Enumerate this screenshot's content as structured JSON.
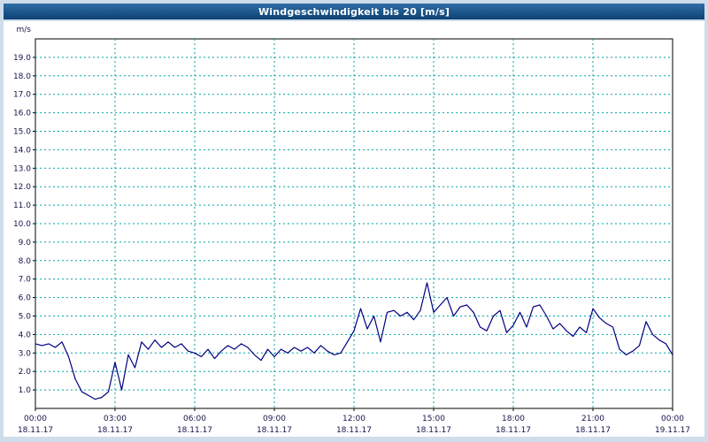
{
  "title": "Windgeschwindigkeit bis 20 [m/s]",
  "colors": {
    "background": "#cfdcea",
    "titlebar_top": "#2f6ea5",
    "titlebar_bottom": "#0d4173",
    "title_text": "#ffffff",
    "panel": "#ffffff",
    "plot_border": "#000000",
    "grid": "#00a3a3",
    "line": "#000080",
    "label": "#14144b"
  },
  "chart_data": {
    "type": "line",
    "title": "Windgeschwindigkeit bis 20 [m/s]",
    "xlabel": "",
    "ylabel": "m/s",
    "ylim": [
      0,
      20
    ],
    "xlim": [
      0,
      1440
    ],
    "grid": true,
    "legend": "none",
    "ytick_labels": [
      "1.0",
      "2.0",
      "3.0",
      "4.0",
      "5.0",
      "6.0",
      "7.0",
      "8.0",
      "9.0",
      "10.0",
      "11.0",
      "12.0",
      "13.0",
      "14.0",
      "15.0",
      "16.0",
      "17.0",
      "18.0",
      "19.0"
    ],
    "xtick_step_minutes": 180,
    "xticks": [
      {
        "time": "00:00",
        "date": "18.11.17"
      },
      {
        "time": "03:00",
        "date": "18.11.17"
      },
      {
        "time": "06:00",
        "date": "18.11.17"
      },
      {
        "time": "09:00",
        "date": "18.11.17"
      },
      {
        "time": "12:00",
        "date": "18.11.17"
      },
      {
        "time": "15:00",
        "date": "18.11.17"
      },
      {
        "time": "18:00",
        "date": "18.11.17"
      },
      {
        "time": "21:00",
        "date": "18.11.17"
      },
      {
        "time": "00:00",
        "date": "19.11.17"
      }
    ],
    "series": [
      {
        "name": "Windgeschwindigkeit [m/s]",
        "start_minute": 0,
        "interval_minutes": 15,
        "values": [
          3.5,
          3.4,
          3.5,
          3.3,
          3.6,
          2.8,
          1.6,
          0.9,
          0.7,
          0.5,
          0.6,
          0.9,
          2.5,
          1.0,
          2.9,
          2.2,
          3.6,
          3.2,
          3.7,
          3.3,
          3.6,
          3.3,
          3.5,
          3.1,
          3.0,
          2.8,
          3.2,
          2.7,
          3.1,
          3.4,
          3.2,
          3.5,
          3.3,
          2.9,
          2.6,
          3.2,
          2.8,
          3.2,
          3.0,
          3.3,
          3.1,
          3.3,
          3.0,
          3.4,
          3.1,
          2.9,
          3.0,
          3.6,
          4.2,
          5.4,
          4.3,
          5.0,
          3.6,
          5.2,
          5.3,
          5.0,
          5.2,
          4.8,
          5.3,
          6.8,
          5.2,
          5.6,
          6.0,
          5.0,
          5.5,
          5.6,
          5.2,
          4.4,
          4.2,
          5.0,
          5.3,
          4.1,
          4.5,
          5.2,
          4.4,
          5.5,
          5.6,
          5.0,
          4.3,
          4.6,
          4.2,
          3.9,
          4.4,
          4.1,
          5.4,
          4.9,
          4.6,
          4.4,
          3.2,
          2.9,
          3.1,
          3.4,
          4.7,
          4.0,
          3.7,
          3.5,
          2.9
        ]
      }
    ]
  }
}
